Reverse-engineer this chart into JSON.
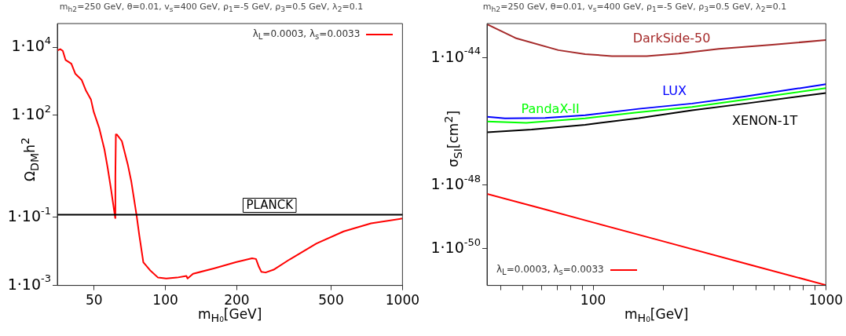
{
  "chart_data": [
    {
      "type": "line",
      "title": "m$_{h2}$=250 GeV, θ=0.01, v$_{s}$=400 GeV, ρ$_{1}$=-5 GeV, ρ$_{3}$=0.5 GeV, λ$_{2}$=0.1",
      "xlabel": "m$_{H₀}$[GeV]",
      "ylabel": "Ω$_{DM}$h$^{2}$",
      "series": [
        {
          "name": "λ$_{L}$=0.0003, λ$_{s}$=0.0033",
          "color": "#ff0000",
          "x": [
            35,
            36,
            36.9,
            37.9,
            40.1,
            41.7,
            44.3,
            46.1,
            48.5,
            49.8,
            52.5,
            55.3,
            57.1,
            59,
            61.4,
            61.5,
            61.8,
            62.5,
            65.5,
            69.5,
            71.8,
            75.7,
            77.6,
            80.7,
            86.1,
            93.1,
            100.8,
            111.8,
            122.6,
            124,
            130.8,
            161,
            198,
            232,
            241,
            247.6,
            254,
            264.6,
            286,
            334,
            434,
            565,
            737,
            1000
          ],
          "values": [
            8090,
            8850,
            7900,
            4270,
            3300,
            1660,
            1110,
            556,
            294,
            129,
            43.5,
            10,
            2.8,
            0.65,
            0.096,
            1.6,
            27.5,
            27,
            17.5,
            3.4,
            1.13,
            0.106,
            0.0295,
            0.0048,
            0.0028,
            0.0017,
            0.0016,
            0.0017,
            0.0019,
            0.0016,
            0.0022,
            0.0032,
            0.0048,
            0.0063,
            0.006,
            0.0036,
            0.0025,
            0.0024,
            0.0029,
            0.0058,
            0.0171,
            0.0388,
            0.067,
            0.093
          ]
        }
      ],
      "xlim": [
        35,
        1000
      ],
      "ylim": [
        0.001,
        50000
      ],
      "xticks": [
        50,
        100,
        200,
        500,
        1000
      ],
      "yticks": [
        {
          "value": 10000,
          "label": "1·10$^{4}$"
        },
        {
          "value": 100,
          "label": "1·10$^{2}$"
        },
        {
          "value": 0.1,
          "label": "1·10$^{-1}$"
        },
        {
          "value": 0.001,
          "label": "1·10$^{-3}$"
        }
      ],
      "log": "xy",
      "legend": "top right",
      "ref_lines": [
        {
          "axis": "y",
          "value": 0.12,
          "label": "PLANCK",
          "color": "#000000"
        }
      ]
    },
    {
      "type": "line",
      "title": "m$_{h2}$=250 GeV, θ=0.01, v$_{s}$=400 GeV, ρ$_{1}$=-5 GeV, ρ$_{3}$=0.5 GeV, λ$_{2}$=0.1",
      "xlabel": "m$_{H₀}$[GeV]",
      "ylabel": "σ$_{SI}$[cm$^{2}$]",
      "series": [
        {
          "name": "λ$_{L}$=0.0003, λ$_{s}$=0.0033",
          "color": "#ff0000",
          "x": [
            35,
            60,
            100,
            200,
            500,
            1000
          ],
          "values": [
            5.3e-49,
            1.84e-49,
            6.7e-50,
            1.71e-50,
            2.8e-51,
            7.2e-52
          ]
        },
        {
          "name": "DarkSide-50",
          "color": "#a52a2a",
          "x": [
            35,
            46.4,
            70.9,
            92.4,
            120.4,
            169.8,
            233,
            347,
            588,
            1000
          ],
          "values": [
            1.14e-43,
            4.2e-44,
            1.75e-44,
            1.31e-44,
            1.14e-44,
            1.14e-44,
            1.36e-44,
            1.93e-44,
            2.58e-44,
            3.64e-44
          ]
        },
        {
          "name": "LUX",
          "color": "#0000ff",
          "x": [
            35,
            41.8,
            62.2,
            92.4,
            157,
            266,
            452,
            1000
          ],
          "values": [
            1.4e-46,
            1.26e-46,
            1.3e-46,
            1.58e-46,
            2.5e-46,
            3.67e-46,
            6.2e-46,
            1.48e-45
          ]
        },
        {
          "name": "PandaX-II",
          "color": "#00ff00",
          "x": [
            35,
            51.6,
            92.4,
            157,
            266,
            452,
            1000
          ],
          "values": [
            1e-46,
            9e-47,
            1.26e-46,
            1.95e-46,
            2.86e-46,
            4.9e-46,
            1.12e-45
          ]
        },
        {
          "name": "XENON-1T",
          "color": "#000000",
          "x": [
            35,
            54.4,
            92.4,
            157,
            266,
            452,
            1000
          ],
          "values": [
            4.6e-47,
            5.6e-47,
            7.9e-47,
            1.27e-46,
            2.26e-46,
            3.67e-46,
            7.9e-46
          ]
        }
      ],
      "xlim": [
        35,
        1000
      ],
      "ylim": [
        7e-52,
        1.2e-43
      ],
      "xticks": [
        {
          "value": 40,
          "label": null
        },
        {
          "value": 50,
          "label": null
        },
        {
          "value": 60,
          "label": null
        },
        {
          "value": 70,
          "label": null
        },
        {
          "value": 80,
          "label": null
        },
        {
          "value": 90,
          "label": null
        },
        100,
        {
          "value": 200,
          "label": null
        },
        {
          "value": 300,
          "label": null
        },
        {
          "value": 400,
          "label": null
        },
        {
          "value": 500,
          "label": null
        },
        {
          "value": 600,
          "label": null
        },
        {
          "value": 700,
          "label": null
        },
        {
          "value": 800,
          "label": null
        },
        {
          "value": 900,
          "label": null
        },
        1000
      ],
      "yticks": [
        {
          "value": 1e-44,
          "label": "1·10$^{-44}$"
        },
        {
          "value": 1e-48,
          "label": "1·10$^{-48}$"
        },
        {
          "value": 1e-50,
          "label": "1·10$^{-50}$"
        }
      ],
      "log": "xy",
      "legend": "bottom left"
    }
  ]
}
